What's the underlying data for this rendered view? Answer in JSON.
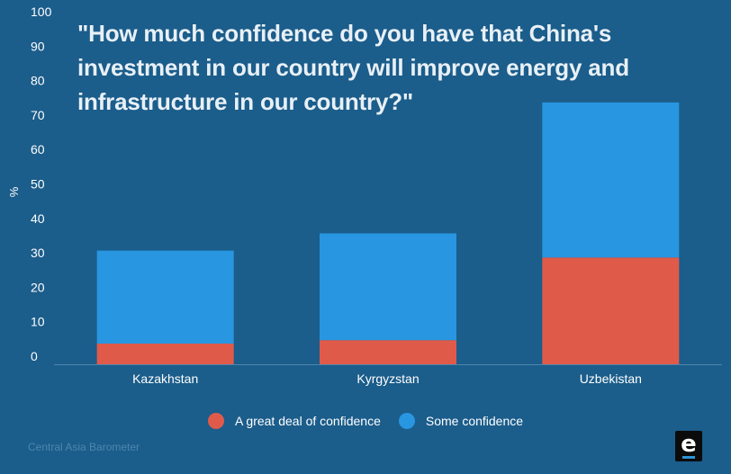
{
  "chart_data": {
    "type": "bar",
    "stacked": true,
    "title": "\"How much confidence do you have that China's investment in our country will improve energy and infrastructure in our country?\"",
    "ylabel": "%",
    "xlabel": "",
    "ylim": [
      0,
      100
    ],
    "yticks": [
      0,
      10,
      20,
      30,
      40,
      50,
      60,
      70,
      80,
      90,
      100
    ],
    "categories": [
      "Kazakhstan",
      "Kyrgyzstan",
      "Uzbekistan"
    ],
    "series": [
      {
        "name": "A great deal of confidence",
        "color": "#e05a4a",
        "values": [
          6,
          7,
          31
        ]
      },
      {
        "name": "Some confidence",
        "color": "#2896e0",
        "values": [
          27,
          31,
          45
        ]
      }
    ],
    "legend_position": "bottom",
    "grid": false
  },
  "source": "Central Asia Barometer",
  "logo_letter": "e",
  "colors": {
    "background": "#1b5d8b",
    "axis_line": "#4f86ad"
  }
}
